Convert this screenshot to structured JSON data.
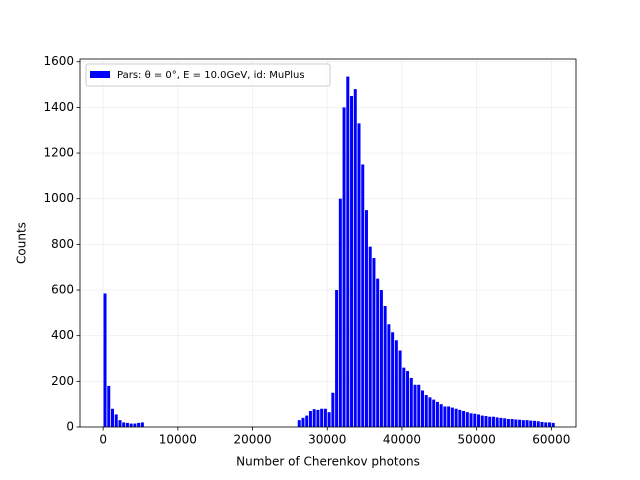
{
  "chart_data": {
    "type": "histogram",
    "xlabel": "Number of Cherenkov photons",
    "ylabel": "Counts",
    "legend": "upper left",
    "grid": true,
    "series": [
      {
        "name": "Pars: θ = 0°, E = 10.0GeV, id: MuPlus",
        "color": "#0000ff",
        "bins": [
          0,
          500,
          1000,
          1500,
          2000,
          2500,
          3000,
          3500,
          4000,
          4500,
          5000,
          5500,
          6000,
          6500,
          7000,
          7500,
          8000,
          8500,
          9000,
          9500,
          10000,
          10500,
          11000,
          11500,
          12000,
          12500,
          13000,
          13500,
          14000,
          14500,
          15000,
          15500,
          16000,
          16500,
          17000,
          17500,
          18000,
          18500,
          19000,
          19500,
          20000,
          20500,
          21000,
          21500,
          22000,
          22500,
          23000,
          23500,
          24000,
          24500,
          25000,
          25500,
          26000,
          26500,
          27000,
          27500,
          28000,
          28500,
          29000,
          29500,
          30000,
          30500,
          31000,
          31500,
          32000,
          32500,
          33000,
          33500,
          34000,
          34500,
          35000,
          35500,
          36000,
          36500,
          37000,
          37500,
          38000,
          38500,
          39000,
          39500,
          40000,
          40500,
          41000,
          41500,
          42000,
          42500,
          43000,
          43500,
          44000,
          44500,
          45000,
          45500,
          46000,
          46500,
          47000,
          47500,
          48000,
          48500,
          49000,
          49500,
          50000,
          50500,
          51000,
          51500,
          52000,
          52500,
          53000,
          53500,
          54000,
          54500,
          55000,
          55500,
          56000,
          56500,
          57000,
          57500,
          58000,
          58500,
          59000,
          59500,
          60000,
          60500
        ],
        "counts": [
          585,
          180,
          80,
          55,
          30,
          20,
          18,
          15,
          15,
          18,
          20,
          0,
          0,
          0,
          0,
          0,
          0,
          0,
          0,
          0,
          0,
          0,
          0,
          0,
          0,
          0,
          0,
          0,
          0,
          0,
          0,
          0,
          0,
          0,
          0,
          0,
          0,
          0,
          0,
          0,
          0,
          0,
          0,
          0,
          0,
          0,
          0,
          0,
          0,
          0,
          0,
          0,
          30,
          40,
          50,
          70,
          78,
          75,
          80,
          80,
          65,
          150,
          600,
          1000,
          1400,
          1535,
          1450,
          1480,
          1330,
          1150,
          950,
          790,
          740,
          650,
          600,
          530,
          450,
          415,
          380,
          335,
          260,
          245,
          215,
          185,
          185,
          160,
          140,
          130,
          120,
          110,
          100,
          90,
          90,
          85,
          80,
          75,
          70,
          65,
          60,
          58,
          55,
          50,
          48,
          45,
          45,
          42,
          40,
          38,
          35,
          35,
          33,
          32,
          30,
          30,
          28,
          27,
          25,
          22,
          20,
          20,
          18
        ]
      }
    ],
    "xlim": [
      -3100,
      63300
    ],
    "ylim": [
      0,
      1612
    ],
    "xticks": [
      0,
      10000,
      20000,
      30000,
      40000,
      50000,
      60000
    ],
    "yticks": [
      0,
      200,
      400,
      600,
      800,
      1000,
      1200,
      1400,
      1600
    ]
  }
}
